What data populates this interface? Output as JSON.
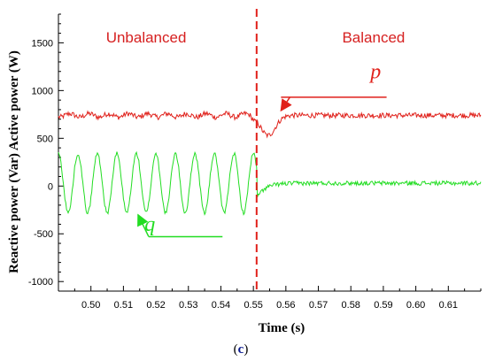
{
  "chart_data": {
    "type": "line",
    "ylabel": "Reactive power (Var) Active power (W)",
    "xlabel": "Time (s)",
    "caption_open": "(",
    "caption_letter": "c",
    "caption_close": ")",
    "xlim": [
      0.49,
      0.62
    ],
    "ylim": [
      -1100,
      1800
    ],
    "x_ticks": [
      0.5,
      0.51,
      0.52,
      0.53,
      0.54,
      0.55,
      0.56,
      0.57,
      0.58,
      0.59,
      0.6,
      0.61
    ],
    "x_tick_labels": [
      "0.50",
      "0.51",
      "0.52",
      "0.53",
      "0.54",
      "0.55",
      "0.56",
      "0.57",
      "0.58",
      "0.59",
      "0.60",
      "0.61"
    ],
    "y_ticks": [
      -1000,
      -500,
      0,
      500,
      1000,
      1500
    ],
    "y_tick_labels": [
      "-1000",
      "-500",
      "0",
      "500",
      "1000",
      "1500"
    ],
    "switch_time": 0.551,
    "regions": [
      {
        "label": "Unbalanced",
        "x_center": 0.517
      },
      {
        "label": "Balanced",
        "x_center": 0.587
      }
    ],
    "series": [
      {
        "name": "p",
        "color": "#e0211b",
        "baseline": 740,
        "dip_time": 0.5545,
        "dip_min": 530,
        "label_pos": [
          0.586,
          1130
        ],
        "arrow_from": [
          0.591,
          930
        ],
        "arrow_to": [
          0.5585,
          790
        ]
      },
      {
        "name": "q",
        "color": "#22dd22",
        "unbalanced_amplitude": 310,
        "unbalanced_period": 0.006,
        "unbalanced_mean": 30,
        "balanced_mean": 30,
        "label_pos": [
          0.5165,
          -470
        ],
        "arrow_from": [
          0.5405,
          -530
        ],
        "arrow_to": [
          0.5145,
          -300
        ]
      }
    ]
  }
}
